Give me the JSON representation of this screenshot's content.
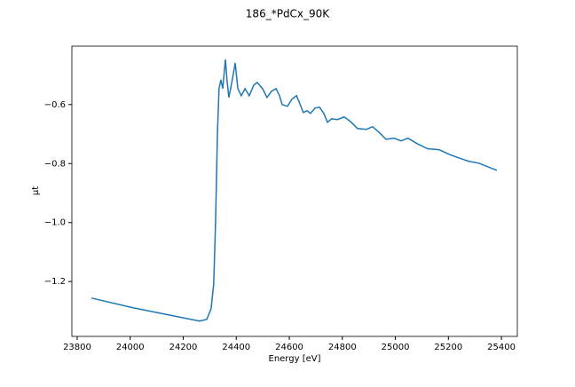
{
  "chart_data": {
    "type": "line",
    "title": "186_*PdCx_90K",
    "x_label": "Energy [eV]",
    "y_label": "μt",
    "x": [
      23854,
      24011,
      24178,
      24262,
      24289,
      24305,
      24315,
      24322,
      24329,
      24335,
      24342,
      24349,
      24359,
      24365,
      24372,
      24382,
      24396,
      24406,
      24419,
      24433,
      24449,
      24466,
      24479,
      24499,
      24516,
      24533,
      24550,
      24563,
      24573,
      24593,
      24610,
      24627,
      24637,
      24653,
      24667,
      24680,
      24697,
      24714,
      24730,
      24744,
      24760,
      24781,
      24807,
      24830,
      24857,
      24891,
      24914,
      24941,
      24965,
      24995,
      25021,
      25048,
      25081,
      25122,
      25165,
      25209,
      25249,
      25276,
      25316,
      25349,
      25383
    ],
    "series": [
      {
        "name": "μt",
        "color": "#1f77b4",
        "values": [
          -1.256,
          -1.289,
          -1.319,
          -1.334,
          -1.328,
          -1.292,
          -1.208,
          -0.997,
          -0.696,
          -0.546,
          -0.516,
          -0.546,
          -0.447,
          -0.516,
          -0.576,
          -0.531,
          -0.459,
          -0.546,
          -0.57,
          -0.546,
          -0.57,
          -0.534,
          -0.525,
          -0.546,
          -0.576,
          -0.555,
          -0.546,
          -0.57,
          -0.6,
          -0.606,
          -0.582,
          -0.57,
          -0.591,
          -0.627,
          -0.621,
          -0.63,
          -0.612,
          -0.609,
          -0.63,
          -0.66,
          -0.648,
          -0.651,
          -0.642,
          -0.657,
          -0.681,
          -0.684,
          -0.675,
          -0.696,
          -0.718,
          -0.714,
          -0.723,
          -0.714,
          -0.732,
          -0.75,
          -0.753,
          -0.771,
          -0.784,
          -0.792,
          -0.799,
          -0.811,
          -0.823
        ]
      }
    ],
    "xlim": [
      23780,
      25460
    ],
    "ylim": [
      -1.386,
      -0.402
    ],
    "xticks": [
      23800,
      24000,
      24200,
      24400,
      24600,
      24800,
      25000,
      25200,
      25400
    ],
    "yticks": [
      {
        "value": -1.2,
        "label": "−1.2"
      },
      {
        "value": -1.0,
        "label": "−1.0"
      },
      {
        "value": -0.8,
        "label": "−0.8"
      },
      {
        "value": -0.6,
        "label": "−0.6"
      }
    ]
  }
}
